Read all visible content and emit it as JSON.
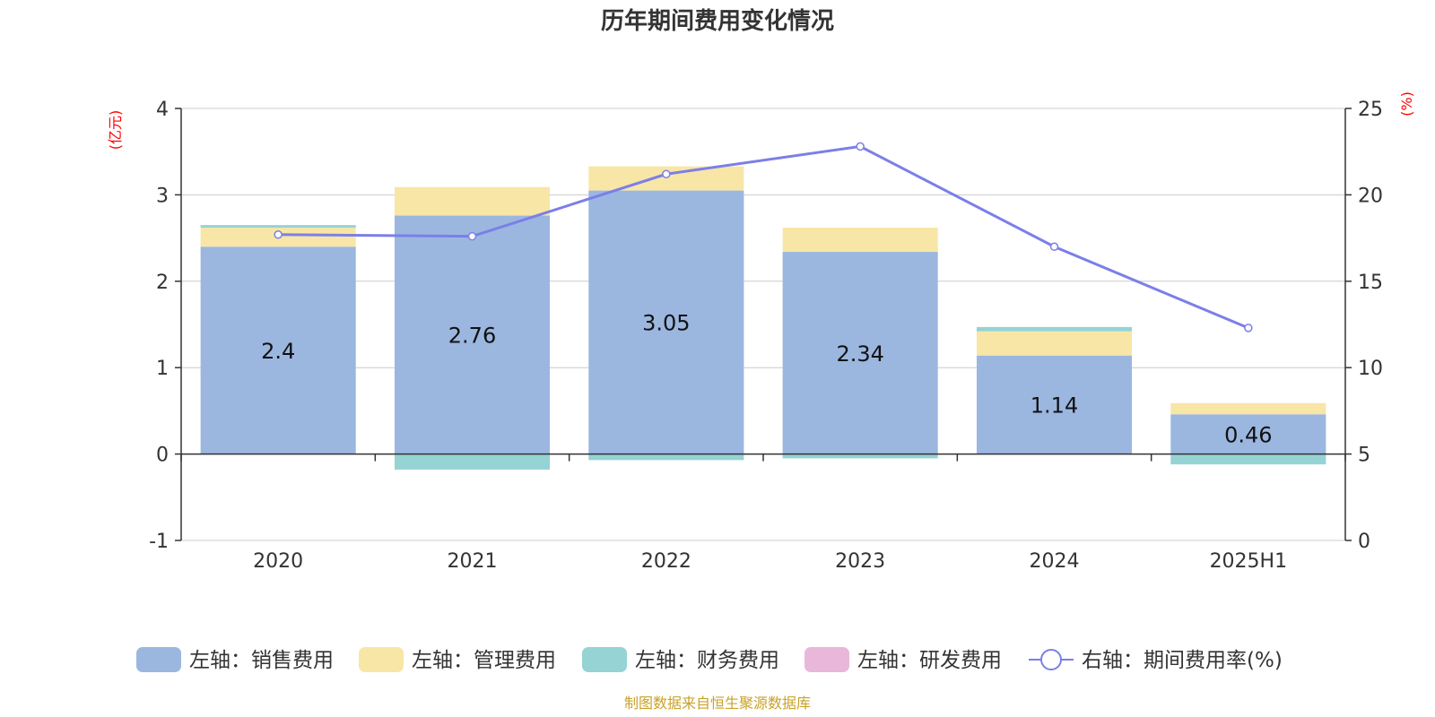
{
  "title": "历年期间费用变化情况",
  "source": "制图数据来自恒生聚源数据库",
  "chart_data": {
    "type": "bar",
    "stacked": true,
    "categories": [
      "2020",
      "2021",
      "2022",
      "2023",
      "2024",
      "2025H1"
    ],
    "y_left": {
      "unit": "(亿元)",
      "ylim": [
        -1,
        4
      ],
      "ticks": [
        "-1",
        "0",
        "1",
        "2",
        "3",
        "4"
      ]
    },
    "y_right": {
      "unit": "(%)",
      "ylim": [
        0,
        25
      ],
      "ticks": [
        "0",
        "5",
        "10",
        "15",
        "20",
        "25"
      ]
    },
    "grid": true,
    "legend_position": "bottom",
    "series": [
      {
        "name": "左轴：销售费用",
        "axis": "left",
        "color": "#9bb7e0",
        "values": [
          2.4,
          2.76,
          3.05,
          2.34,
          1.14,
          0.46
        ],
        "data_labels": [
          "2.4",
          "2.76",
          "3.05",
          "2.34",
          "1.14",
          "0.46"
        ]
      },
      {
        "name": "左轴：管理费用",
        "axis": "left",
        "color": "#f8e6a6",
        "values": [
          0.22,
          0.33,
          0.28,
          0.28,
          0.28,
          0.13
        ]
      },
      {
        "name": "左轴：财务费用",
        "axis": "left",
        "color": "#95d3d4",
        "values": [
          0.03,
          -0.18,
          -0.07,
          -0.05,
          0.05,
          -0.12
        ]
      },
      {
        "name": "左轴：研发费用",
        "axis": "left",
        "color": "#e8b7d9",
        "values": [
          0,
          0,
          0,
          0,
          0,
          0
        ]
      },
      {
        "name": "右轴：期间费用率(%)",
        "axis": "right",
        "type": "line",
        "color": "#7b7fe8",
        "values": [
          17.7,
          17.6,
          21.2,
          22.8,
          17.0,
          12.3
        ]
      }
    ]
  }
}
